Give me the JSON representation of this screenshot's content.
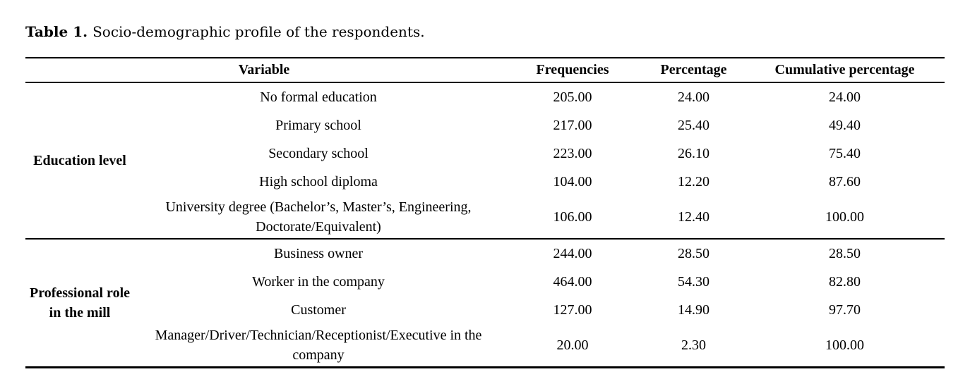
{
  "caption": {
    "label": "Table 1.",
    "text": "Socio-demographic profile of the respondents."
  },
  "table": {
    "headers": [
      "Variable",
      "Frequencies",
      "Percentage",
      "Cumulative percentage"
    ],
    "groups": [
      {
        "label": "Education level",
        "rows": [
          {
            "variable": "No formal education",
            "frequency": "205.00",
            "percentage": "24.00",
            "cumulative": "24.00"
          },
          {
            "variable": "Primary school",
            "frequency": "217.00",
            "percentage": "25.40",
            "cumulative": "49.40"
          },
          {
            "variable": "Secondary school",
            "frequency": "223.00",
            "percentage": "26.10",
            "cumulative": "75.40"
          },
          {
            "variable": "High school diploma",
            "frequency": "104.00",
            "percentage": "12.20",
            "cumulative": "87.60"
          },
          {
            "variable": "University degree (Bachelor’s, Master’s, Engineering, Doctorate/Equivalent)",
            "frequency": "106.00",
            "percentage": "12.40",
            "cumulative": "100.00"
          }
        ]
      },
      {
        "label": "Professional role in the mill",
        "rows": [
          {
            "variable": "Business owner",
            "frequency": "244.00",
            "percentage": "28.50",
            "cumulative": "28.50"
          },
          {
            "variable": "Worker in the company",
            "frequency": "464.00",
            "percentage": "54.30",
            "cumulative": "82.80"
          },
          {
            "variable": "Customer",
            "frequency": "127.00",
            "percentage": "14.90",
            "cumulative": "97.70"
          },
          {
            "variable": "Manager/Driver/Technician/Receptionist/Executive in the company",
            "frequency": "20.00",
            "percentage": "2.30",
            "cumulative": "100.00"
          }
        ]
      }
    ]
  }
}
